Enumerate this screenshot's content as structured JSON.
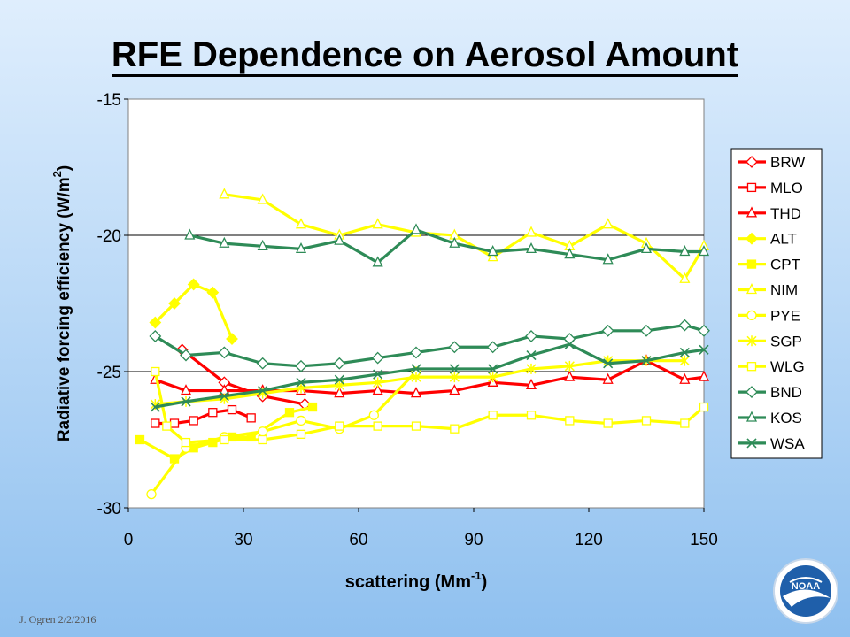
{
  "slide": {
    "title": "RFE Dependence on Aerosol Amount",
    "footer": "J. Ogren  2/2/2016",
    "logo_text": "NOAA"
  },
  "chart_data": {
    "type": "line",
    "title": "RFE Dependence on Aerosol Amount",
    "xlabel": "scattering (Mm",
    "xlabel_sup": "-1",
    "xlabel_end": ")",
    "ylabel": "Radiative forcing efficiency (W/m",
    "ylabel_sup": "2",
    "ylabel_end": ")",
    "xlim": [
      0,
      150
    ],
    "ylim": [
      -30,
      -15
    ],
    "xticks": [
      0,
      30,
      60,
      90,
      120,
      150
    ],
    "yticks": [
      -30,
      -25,
      -20,
      -15
    ],
    "gridlines_y": [
      -20,
      -25
    ],
    "legend_position": "right",
    "series": [
      {
        "name": "BRW",
        "color": "#ff0000",
        "marker": "diamond",
        "x": [
          14,
          25,
          35,
          46
        ],
        "y": [
          -24.2,
          -25.4,
          -25.9,
          -26.2
        ]
      },
      {
        "name": "MLO",
        "color": "#ff0000",
        "marker": "square",
        "x": [
          7,
          12,
          17,
          22,
          27,
          32
        ],
        "y": [
          -26.9,
          -26.9,
          -26.8,
          -26.5,
          -26.4,
          -26.7
        ]
      },
      {
        "name": "THD",
        "color": "#ff0000",
        "marker": "triangle",
        "x": [
          7,
          15,
          25,
          35,
          45,
          55,
          65,
          75,
          85,
          95,
          105,
          115,
          125,
          135,
          145,
          150
        ],
        "y": [
          -25.3,
          -25.7,
          -25.7,
          -25.7,
          -25.7,
          -25.8,
          -25.7,
          -25.8,
          -25.7,
          -25.4,
          -25.5,
          -25.2,
          -25.3,
          -24.6,
          -25.3,
          -25.2
        ]
      },
      {
        "name": "ALT",
        "color": "#ffff00",
        "marker": "diamond-filled",
        "x": [
          7,
          12,
          17,
          22,
          27
        ],
        "y": [
          -23.2,
          -22.5,
          -21.8,
          -22.1,
          -23.8
        ]
      },
      {
        "name": "CPT",
        "color": "#ffff00",
        "marker": "square-filled",
        "x": [
          3,
          12,
          17,
          22,
          27,
          32,
          42,
          48
        ],
        "y": [
          -27.5,
          -28.2,
          -27.8,
          -27.6,
          -27.4,
          -27.4,
          -26.5,
          -26.3
        ]
      },
      {
        "name": "NIM",
        "color": "#ffff00",
        "marker": "triangle",
        "x": [
          25,
          35,
          45,
          55,
          65,
          75,
          85,
          95,
          105,
          115,
          125,
          135,
          145,
          150
        ],
        "y": [
          -18.5,
          -18.7,
          -19.6,
          -20.0,
          -19.6,
          -19.9,
          -20.0,
          -20.8,
          -19.9,
          -20.4,
          -19.6,
          -20.3,
          -21.6,
          -20.4
        ]
      },
      {
        "name": "PYE",
        "color": "#ffff00",
        "marker": "circle",
        "x": [
          6,
          15,
          25,
          35,
          45,
          55,
          64,
          75
        ],
        "y": [
          -29.5,
          -27.8,
          -27.4,
          -27.2,
          -26.8,
          -27.1,
          -26.6,
          -25.0
        ]
      },
      {
        "name": "SGP",
        "color": "#ffff00",
        "marker": "star",
        "x": [
          7,
          15,
          25,
          35,
          45,
          55,
          65,
          75,
          85,
          95,
          105,
          115,
          125,
          135,
          145
        ],
        "y": [
          -26.2,
          -26.1,
          -26.0,
          -25.8,
          -25.6,
          -25.5,
          -25.4,
          -25.2,
          -25.2,
          -25.2,
          -24.9,
          -24.8,
          -24.6,
          -24.6,
          -24.6
        ]
      },
      {
        "name": "WLG",
        "color": "#ffff00",
        "marker": "square",
        "x": [
          7,
          10,
          15,
          25,
          35,
          45,
          55,
          65,
          75,
          85,
          95,
          105,
          115,
          125,
          135,
          145,
          150
        ],
        "y": [
          -25.0,
          -27.0,
          -27.6,
          -27.5,
          -27.5,
          -27.3,
          -27.0,
          -27.0,
          -27.0,
          -27.1,
          -26.6,
          -26.6,
          -26.8,
          -26.9,
          -26.8,
          -26.9,
          -26.3
        ]
      },
      {
        "name": "BND",
        "color": "#2e8b57",
        "marker": "diamond",
        "x": [
          7,
          15,
          25,
          35,
          45,
          55,
          65,
          75,
          85,
          95,
          105,
          115,
          125,
          135,
          145,
          150
        ],
        "y": [
          -23.7,
          -24.4,
          -24.3,
          -24.7,
          -24.8,
          -24.7,
          -24.5,
          -24.3,
          -24.1,
          -24.1,
          -23.7,
          -23.8,
          -23.5,
          -23.5,
          -23.3,
          -23.5
        ]
      },
      {
        "name": "KOS",
        "color": "#2e8b57",
        "marker": "triangle",
        "x": [
          16,
          25,
          35,
          45,
          55,
          65,
          75,
          85,
          95,
          105,
          115,
          125,
          135,
          145,
          150
        ],
        "y": [
          -20.0,
          -20.3,
          -20.4,
          -20.5,
          -20.2,
          -21.0,
          -19.8,
          -20.3,
          -20.6,
          -20.5,
          -20.7,
          -20.9,
          -20.5,
          -20.6,
          -20.6
        ]
      },
      {
        "name": "WSA",
        "color": "#2e8b57",
        "marker": "x",
        "x": [
          7,
          15,
          25,
          35,
          45,
          55,
          65,
          75,
          85,
          95,
          105,
          115,
          125,
          135,
          145,
          150
        ],
        "y": [
          -26.3,
          -26.1,
          -25.9,
          -25.7,
          -25.4,
          -25.3,
          -25.1,
          -24.9,
          -24.9,
          -24.9,
          -24.4,
          -24.0,
          -24.7,
          -24.6,
          -24.3,
          -24.2
        ]
      }
    ]
  }
}
